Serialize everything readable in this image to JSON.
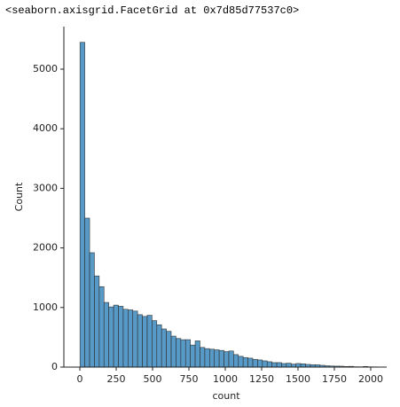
{
  "output_text": "<seaborn.axisgrid.FacetGrid at 0x7d85d77537c0>",
  "chart_data": {
    "type": "histogram",
    "x_label": "count",
    "y_label": "Count",
    "color": "#1f77b4",
    "bins": [
      1,
      34,
      67,
      100,
      133,
      166,
      199,
      232,
      265,
      298,
      331,
      364,
      397,
      430,
      463,
      496,
      529,
      562,
      595,
      628,
      661,
      694,
      727,
      760,
      793,
      826,
      859,
      892,
      925,
      958,
      991,
      1024,
      1057,
      1090,
      1123,
      1156,
      1189,
      1222,
      1255,
      1288,
      1321,
      1354,
      1387,
      1420,
      1453,
      1486,
      1519,
      1552,
      1585,
      1618,
      1651,
      1684,
      1717,
      1750,
      1783,
      1816,
      1849,
      1882,
      1915,
      1948,
      1981,
      2014,
      2047
    ],
    "values": [
      5450,
      2500,
      1920,
      1530,
      1350,
      1085,
      1010,
      1040,
      1020,
      970,
      960,
      940,
      880,
      850,
      870,
      780,
      710,
      640,
      600,
      520,
      480,
      460,
      460,
      370,
      440,
      330,
      310,
      300,
      290,
      280,
      260,
      270,
      210,
      180,
      160,
      150,
      130,
      120,
      105,
      90,
      75,
      75,
      60,
      65,
      50,
      60,
      55,
      45,
      40,
      38,
      30,
      22,
      18,
      16,
      15,
      10,
      12,
      6,
      5,
      10,
      5,
      4
    ],
    "xlim": [
      -110,
      2110
    ],
    "ylim": [
      0,
      5714
    ],
    "xticks": [
      0,
      250,
      500,
      750,
      1000,
      1250,
      1500,
      1750,
      2000
    ],
    "yticks": [
      0,
      1000,
      2000,
      3000,
      4000,
      5000
    ]
  }
}
